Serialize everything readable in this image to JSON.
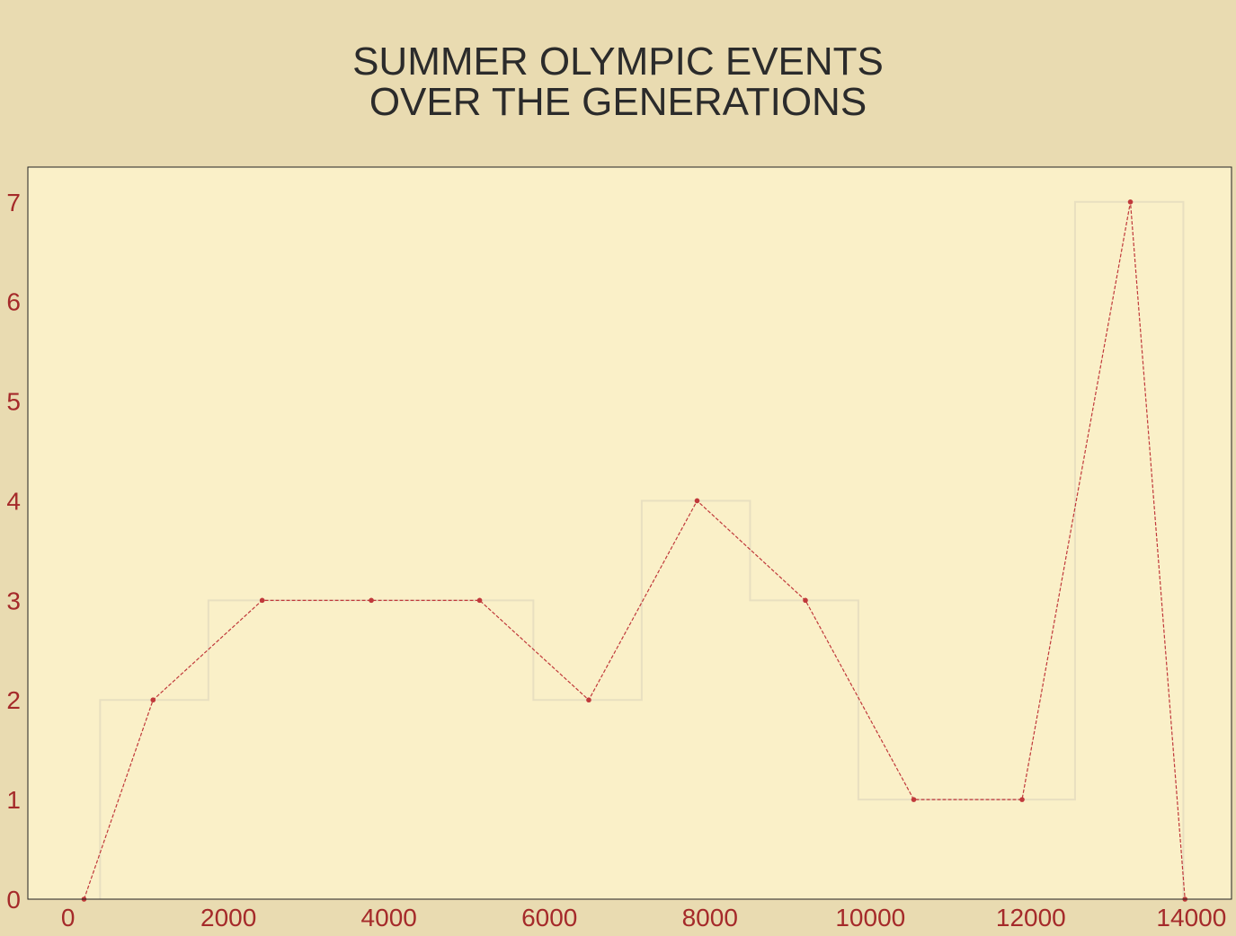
{
  "chart_data": {
    "type": "line",
    "title_lines": [
      "SUMMER OLYMPIC EVENTS",
      "OVER THE GENERATIONS"
    ],
    "xlabel": "",
    "ylabel": "",
    "xlim": [
      -500,
      14500
    ],
    "ylim": [
      0,
      7.35
    ],
    "xticks": [
      0,
      2000,
      4000,
      6000,
      8000,
      10000,
      12000,
      14000
    ],
    "yticks": [
      0,
      1,
      2,
      3,
      4,
      5,
      6,
      7
    ],
    "grid": false,
    "legend": "none",
    "series": [
      {
        "style": "dashed line with dot markers",
        "x": [
          200,
          1060,
          2420,
          3780,
          5130,
          6490,
          7840,
          9190,
          10540,
          11890,
          13240,
          13920
        ],
        "y": [
          0,
          2,
          3,
          3,
          3,
          2,
          4,
          3,
          1,
          1,
          7,
          0
        ]
      },
      {
        "style": "step histogram outline",
        "bin_edges": [
          400,
          1750,
          3100,
          4450,
          5800,
          7150,
          8500,
          9850,
          11200,
          12550,
          13900
        ],
        "counts": [
          2,
          3,
          3,
          3,
          2,
          4,
          3,
          1,
          1,
          7
        ]
      }
    ],
    "colors": {
      "background": "#e9dbb1",
      "plot_background": "#faf0c8",
      "line": "#c0393b",
      "step": "#e8dfc0",
      "tick_label": "#a52a2a",
      "title": "#2b2b2b",
      "frame": "#222222"
    }
  }
}
